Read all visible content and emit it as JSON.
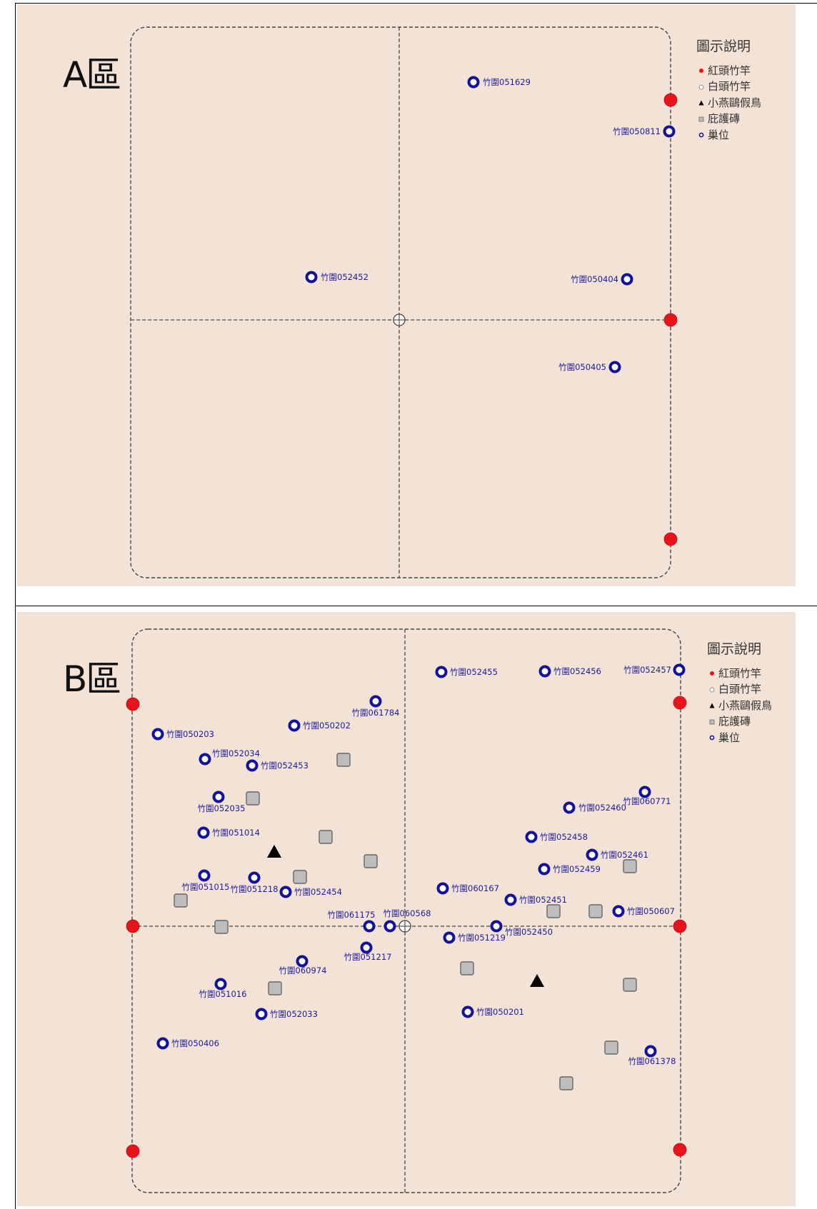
{
  "legend": {
    "title": "圖示說明",
    "items": [
      {
        "label": "紅頭竹竿",
        "icon": "red-pole-icon",
        "color": "#e8141b"
      },
      {
        "label": "白頭竹竿",
        "icon": "white-pole-icon",
        "color": "#ffffff"
      },
      {
        "label": "小燕鷗假鳥",
        "icon": "decoy-bird-triangle-icon",
        "color": "#000000"
      },
      {
        "label": "庇護磚",
        "icon": "shelter-brick-icon",
        "color": "#bdbdbd"
      },
      {
        "label": "巢位",
        "icon": "nest-icon",
        "color": "#12129a"
      }
    ]
  },
  "zones": [
    {
      "id": "A",
      "label": "A區",
      "nests": [
        {
          "label": "竹圍051629"
        },
        {
          "label": "竹圍050811"
        },
        {
          "label": "竹圍052452"
        },
        {
          "label": "竹圍050404"
        },
        {
          "label": "竹圍050405"
        }
      ]
    },
    {
      "id": "B",
      "label": "B區",
      "nests": [
        {
          "label": "竹圍052455"
        },
        {
          "label": "竹圍052456"
        },
        {
          "label": "竹圍052457"
        },
        {
          "label": "竹圍061784"
        },
        {
          "label": "竹圍050202"
        },
        {
          "label": "竹圍050203"
        },
        {
          "label": "竹圍052034"
        },
        {
          "label": "竹圍052453"
        },
        {
          "label": "竹圍052035"
        },
        {
          "label": "竹圍051014"
        },
        {
          "label": "竹圍051015"
        },
        {
          "label": "竹圍051218"
        },
        {
          "label": "竹圍052454"
        },
        {
          "label": "竹圍061175"
        },
        {
          "label": "竹圍060568"
        },
        {
          "label": "竹圍051217"
        },
        {
          "label": "竹圍060974"
        },
        {
          "label": "竹圍051016"
        },
        {
          "label": "竹圍052033"
        },
        {
          "label": "竹圍050406"
        },
        {
          "label": "竹圍060771"
        },
        {
          "label": "竹圍052460"
        },
        {
          "label": "竹圍052458"
        },
        {
          "label": "竹圍052461"
        },
        {
          "label": "竹圍052459"
        },
        {
          "label": "竹圍060167"
        },
        {
          "label": "竹圍052451"
        },
        {
          "label": "竹圍050607"
        },
        {
          "label": "竹圍052450"
        },
        {
          "label": "竹圍051219"
        },
        {
          "label": "竹圍050201"
        },
        {
          "label": "竹圍061378"
        }
      ]
    }
  ]
}
